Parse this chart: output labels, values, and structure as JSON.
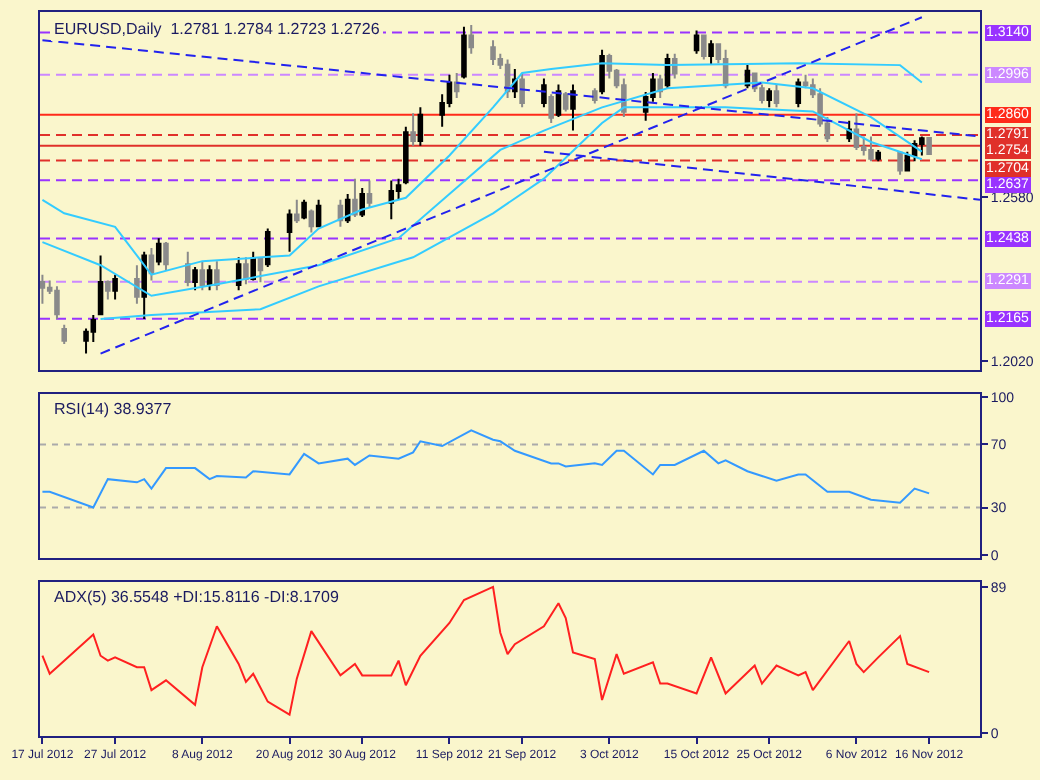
{
  "chart_data": [
    {
      "type": "candlestick",
      "title": "EURUSD,Daily  1.2781 1.2784 1.2723 1.2726",
      "x": [
        "2012-07-17",
        "2012-07-18",
        "2012-07-19",
        "2012-07-20",
        "2012-07-23",
        "2012-07-24",
        "2012-07-25",
        "2012-07-26",
        "2012-07-27",
        "2012-07-30",
        "2012-07-31",
        "2012-08-01",
        "2012-08-02",
        "2012-08-03",
        "2012-08-06",
        "2012-08-07",
        "2012-08-08",
        "2012-08-09",
        "2012-08-10",
        "2012-08-13",
        "2012-08-14",
        "2012-08-15",
        "2012-08-16",
        "2012-08-17",
        "2012-08-20",
        "2012-08-21",
        "2012-08-22",
        "2012-08-23",
        "2012-08-24",
        "2012-08-27",
        "2012-08-28",
        "2012-08-29",
        "2012-08-30",
        "2012-08-31",
        "2012-09-03",
        "2012-09-04",
        "2012-09-05",
        "2012-09-06",
        "2012-09-07",
        "2012-09-10",
        "2012-09-11",
        "2012-09-12",
        "2012-09-13",
        "2012-09-14",
        "2012-09-17",
        "2012-09-18",
        "2012-09-19",
        "2012-09-20",
        "2012-09-21",
        "2012-09-24",
        "2012-09-25",
        "2012-09-26",
        "2012-09-27",
        "2012-09-28",
        "2012-10-01",
        "2012-10-02",
        "2012-10-03",
        "2012-10-04",
        "2012-10-05",
        "2012-10-08",
        "2012-10-09",
        "2012-10-10",
        "2012-10-11",
        "2012-10-12",
        "2012-10-15",
        "2012-10-16",
        "2012-10-17",
        "2012-10-18",
        "2012-10-19",
        "2012-10-22",
        "2012-10-23",
        "2012-10-24",
        "2012-10-25",
        "2012-10-26",
        "2012-10-29",
        "2012-10-30",
        "2012-10-31",
        "2012-11-01",
        "2012-11-02",
        "2012-11-05",
        "2012-11-06",
        "2012-11-07",
        "2012-11-08",
        "2012-11-09",
        "2012-11-12",
        "2012-11-13",
        "2012-11-14",
        "2012-11-15",
        "2012-11-16"
      ],
      "ohlc": [
        [
          1.229,
          1.2315,
          1.2216,
          1.227
        ],
        [
          1.227,
          1.2295,
          1.2249,
          1.226
        ],
        [
          1.226,
          1.2275,
          1.2164,
          1.218
        ],
        [
          1.213,
          1.2144,
          1.2079,
          1.209
        ],
        [
          1.209,
          1.2131,
          1.2046,
          1.212
        ],
        [
          1.212,
          1.2177,
          1.2085,
          1.216
        ],
        [
          1.218,
          1.238,
          1.2177,
          1.229
        ],
        [
          1.229,
          1.2295,
          1.223,
          1.226
        ],
        [
          1.226,
          1.2315,
          1.223,
          1.23
        ],
        [
          1.23,
          1.2347,
          1.2216,
          1.224
        ],
        [
          1.224,
          1.2393,
          1.2164,
          1.238
        ],
        [
          1.238,
          1.2406,
          1.2295,
          1.232
        ],
        [
          1.236,
          1.2439,
          1.2347,
          1.242
        ],
        [
          1.242,
          1.2426,
          1.2328,
          1.235
        ],
        [
          1.235,
          1.2393,
          1.2275,
          1.229
        ],
        [
          1.229,
          1.2341,
          1.2262,
          1.233
        ],
        [
          1.233,
          1.2361,
          1.2262,
          1.228
        ],
        [
          1.228,
          1.2347,
          1.2262,
          1.233
        ],
        [
          1.233,
          1.2361,
          1.2262,
          1.228
        ],
        [
          1.228,
          1.2374,
          1.2262,
          1.235
        ],
        [
          1.235,
          1.2374,
          1.2282,
          1.23
        ],
        [
          1.23,
          1.2393,
          1.2295,
          1.237
        ],
        [
          1.237,
          1.2374,
          1.2289,
          1.233
        ],
        [
          1.235,
          1.2472,
          1.2341,
          1.246
        ],
        [
          1.246,
          1.2537,
          1.2393,
          1.252
        ],
        [
          1.252,
          1.257,
          1.2491,
          1.25
        ],
        [
          1.251,
          1.257,
          1.2504,
          1.256
        ],
        [
          1.253,
          1.2537,
          1.2459,
          1.248
        ],
        [
          1.248,
          1.257,
          1.2478,
          1.255
        ],
        [
          1.255,
          1.257,
          1.2478,
          1.25
        ],
        [
          1.25,
          1.259,
          1.2491,
          1.257
        ],
        [
          1.257,
          1.2642,
          1.2511,
          1.252
        ],
        [
          1.252,
          1.261,
          1.2511,
          1.259
        ],
        [
          1.259,
          1.2636,
          1.2544,
          1.256
        ],
        [
          1.256,
          1.2636,
          1.2504,
          1.26
        ],
        [
          1.26,
          1.2642,
          1.257,
          1.262
        ],
        [
          1.263,
          1.2819,
          1.2623,
          1.28
        ],
        [
          1.28,
          1.2865,
          1.2754,
          1.277
        ],
        [
          1.277,
          1.2885,
          1.2754,
          1.286
        ],
        [
          1.286,
          1.293,
          1.2819,
          1.29
        ],
        [
          1.29,
          1.2996,
          1.2885,
          1.297
        ],
        [
          1.297,
          1.3002,
          1.2917,
          1.294
        ],
        [
          1.299,
          1.316,
          1.2983,
          1.313
        ],
        [
          1.313,
          1.3166,
          1.3068,
          1.309
        ],
        [
          1.309,
          1.3114,
          1.3029,
          1.305
        ],
        [
          1.305,
          1.3068,
          1.3016,
          1.303
        ],
        [
          1.303,
          1.3048,
          1.2917,
          1.294
        ],
        [
          1.294,
          1.3016,
          1.2917,
          1.298
        ],
        [
          1.298,
          1.3002,
          1.2885,
          1.29
        ],
        [
          1.29,
          1.2983,
          1.2885,
          1.296
        ],
        [
          1.292,
          1.293,
          1.2832,
          1.285
        ],
        [
          1.286,
          1.2963,
          1.2852,
          1.294
        ],
        [
          1.293,
          1.2937,
          1.2871,
          1.288
        ],
        [
          1.288,
          1.2963,
          1.2806,
          1.294
        ],
        [
          1.294,
          1.295,
          1.2898,
          1.291
        ],
        [
          1.294,
          1.3081,
          1.293,
          1.306
        ],
        [
          1.306,
          1.3068,
          1.2983,
          1.301
        ],
        [
          1.301,
          1.3016,
          1.295,
          1.296
        ],
        [
          1.296,
          1.2983,
          1.2852,
          1.287
        ],
        [
          1.287,
          1.2937,
          1.2839,
          1.292
        ],
        [
          1.292,
          1.3002,
          1.2904,
          1.298
        ],
        [
          1.298,
          1.2996,
          1.2917,
          1.294
        ],
        [
          1.296,
          1.3068,
          1.295,
          1.305
        ],
        [
          1.305,
          1.3068,
          1.2983,
          1.3
        ],
        [
          1.308,
          1.3147,
          1.3068,
          1.313
        ],
        [
          1.313,
          1.3133,
          1.3048,
          1.306
        ],
        [
          1.306,
          1.3114,
          1.3029,
          1.31
        ],
        [
          1.31,
          1.3101,
          1.3035,
          1.305
        ],
        [
          1.305,
          1.3081,
          1.295,
          1.296
        ],
        [
          1.296,
          1.3029,
          1.295,
          1.301
        ],
        [
          1.3,
          1.3002,
          1.2937,
          1.295
        ],
        [
          1.295,
          1.2963,
          1.2898,
          1.291
        ],
        [
          1.291,
          1.295,
          1.2885,
          1.294
        ],
        [
          1.294,
          1.2963,
          1.2885,
          1.29
        ],
        [
          1.29,
          1.2983,
          1.2885,
          1.297
        ],
        [
          1.297,
          1.2996,
          1.295,
          1.296
        ],
        [
          1.296,
          1.2983,
          1.2917,
          1.293
        ],
        [
          1.293,
          1.295,
          1.2819,
          1.283
        ],
        [
          1.283,
          1.2852,
          1.2767,
          1.278
        ],
        [
          1.278,
          1.2839,
          1.2767,
          1.281
        ],
        [
          1.281,
          1.2865,
          1.274,
          1.275
        ],
        [
          1.275,
          1.2786,
          1.2721,
          1.274
        ],
        [
          1.274,
          1.2786,
          1.2701,
          1.271
        ],
        [
          1.271,
          1.274,
          1.2701,
          1.273
        ],
        [
          1.273,
          1.2734,
          1.2655,
          1.267
        ],
        [
          1.267,
          1.2734,
          1.2668,
          1.272
        ],
        [
          1.272,
          1.2773,
          1.2701,
          1.276
        ],
        [
          1.276,
          1.2786,
          1.2721,
          1.278
        ],
        [
          1.2781,
          1.2784,
          1.2723,
          1.2726
        ]
      ],
      "series": [
        {
          "type": "line",
          "color": "#33ccff",
          "x": [
            "2012-07-17",
            "2012-07-20",
            "2012-07-27",
            "2012-08-01",
            "2012-08-08",
            "2012-08-20",
            "2012-08-24",
            "2012-08-30",
            "2012-09-05",
            "2012-09-11",
            "2012-09-17",
            "2012-09-21",
            "2012-09-25",
            "2012-10-02",
            "2012-10-11",
            "2012-10-29",
            "2012-11-12",
            "2012-11-15"
          ],
          "values": [
            1.257,
            1.2524,
            1.2478,
            1.2315,
            1.2361,
            1.238,
            1.2472,
            1.2537,
            1.2577,
            1.2721,
            1.2885,
            1.3002,
            1.3016,
            1.3035,
            1.3029,
            1.3035,
            1.3029,
            1.297
          ]
        },
        {
          "type": "line",
          "color": "#33ccff",
          "x": [
            "2012-07-17",
            "2012-07-25",
            "2012-08-01",
            "2012-08-10",
            "2012-08-24",
            "2012-09-04",
            "2012-09-11",
            "2012-09-18",
            "2012-09-24",
            "2012-10-02",
            "2012-10-11",
            "2012-10-24",
            "2012-10-31",
            "2012-11-08",
            "2012-11-15"
          ],
          "values": [
            1.2426,
            1.2347,
            1.2243,
            1.2282,
            1.2347,
            1.2439,
            1.259,
            1.274,
            1.2806,
            1.2885,
            1.295,
            1.297,
            1.295,
            1.2852,
            1.2734
          ]
        },
        {
          "type": "line",
          "color": "#33ccff",
          "x": [
            "2012-07-25",
            "2012-08-01",
            "2012-08-16",
            "2012-08-24",
            "2012-09-06",
            "2012-09-17",
            "2012-09-24",
            "2012-10-02",
            "2012-10-05",
            "2012-10-19",
            "2012-10-31",
            "2012-11-08",
            "2012-11-15"
          ],
          "values": [
            1.2164,
            1.2177,
            1.2197,
            1.2275,
            1.2374,
            1.2524,
            1.2642,
            1.2832,
            1.2885,
            1.2885,
            1.2871,
            1.2767,
            1.2708
          ]
        },
        {
          "type": "line",
          "color": "#2222ee",
          "line_style": "dashed",
          "x": [
            "2012-07-17",
            "2012-11-23"
          ],
          "values": [
            1.3114,
            1.2786
          ]
        },
        {
          "type": "line",
          "color": "#2222ee",
          "line_style": "dashed",
          "x": [
            "2012-07-25",
            "2012-11-15"
          ],
          "values": [
            1.2046,
            1.3192
          ]
        },
        {
          "type": "line",
          "color": "#2222ee",
          "line_style": "dashed",
          "x": [
            "2012-09-24",
            "2012-11-23"
          ],
          "values": [
            1.2734,
            1.257
          ]
        }
      ],
      "ref_lines": [
        {
          "axis": "y",
          "value": 1.314,
          "label": "1.3140",
          "color": "#9933ff",
          "line_style": "dashed"
        },
        {
          "axis": "y",
          "value": 1.2996,
          "label": "1.2996",
          "color": "#cc88ff",
          "line_style": "dashed"
        },
        {
          "axis": "y",
          "value": 1.286,
          "label": "1.2860",
          "color": "#ff2a1a",
          "line_style": "solid"
        },
        {
          "axis": "y",
          "value": 1.2791,
          "label": "1.2791",
          "color": "#e0302a",
          "line_style": "dashed"
        },
        {
          "axis": "y",
          "value": 1.2754,
          "label": "1.2754",
          "color": "#e0302a",
          "line_style": "solid"
        },
        {
          "axis": "y",
          "value": 1.2704,
          "label": "1.2704",
          "color": "#e0302a",
          "line_style": "dashed"
        },
        {
          "axis": "y",
          "value": 1.2637,
          "label": "1.2637",
          "color": "#9933ff",
          "line_style": "dashed"
        },
        {
          "axis": "y",
          "value": 1.2438,
          "label": "1.2438",
          "color": "#9933ff",
          "line_style": "dashed"
        },
        {
          "axis": "y",
          "value": 1.2291,
          "label": "1.2291",
          "color": "#cc88ff",
          "line_style": "dashed"
        },
        {
          "axis": "y",
          "value": 1.2165,
          "label": "1.2165",
          "color": "#9933ff",
          "line_style": "dashed"
        }
      ],
      "xlim": [
        "2012-07-16T16:00",
        "2012-11-23"
      ],
      "ylim": [
        1.199,
        1.321
      ],
      "yticks": [
        {
          "value": 1.258,
          "label": "1.2580"
        },
        {
          "value": 1.202,
          "label": "1.2020"
        }
      ],
      "tick_labels": "y",
      "grid": false
    },
    {
      "type": "line",
      "title": "RSI(14) 38.9377",
      "color": "#3399ff",
      "x": [
        "2012-07-17",
        "2012-07-18",
        "2012-07-24",
        "2012-07-26",
        "2012-07-30",
        "2012-07-31",
        "2012-08-01",
        "2012-08-03",
        "2012-08-07",
        "2012-08-09",
        "2012-08-10",
        "2012-08-14",
        "2012-08-15",
        "2012-08-20",
        "2012-08-22",
        "2012-08-24",
        "2012-08-28",
        "2012-08-29",
        "2012-08-31",
        "2012-09-04",
        "2012-09-06",
        "2012-09-07",
        "2012-09-10",
        "2012-09-14",
        "2012-09-17",
        "2012-09-18",
        "2012-09-20",
        "2012-09-25",
        "2012-09-26",
        "2012-09-27",
        "2012-10-01",
        "2012-10-02",
        "2012-10-04",
        "2012-10-05",
        "2012-10-09",
        "2012-10-10",
        "2012-10-12",
        "2012-10-16",
        "2012-10-18",
        "2012-10-19",
        "2012-10-22",
        "2012-10-24",
        "2012-10-26",
        "2012-10-29",
        "2012-10-30",
        "2012-11-02",
        "2012-11-05",
        "2012-11-08",
        "2012-11-12",
        "2012-11-14",
        "2012-11-16"
      ],
      "values": [
        40,
        40,
        30,
        48,
        46,
        48,
        42,
        55,
        55,
        48,
        50,
        49,
        53,
        51,
        64,
        58,
        61,
        57,
        63,
        61,
        65,
        72,
        69,
        79,
        73,
        72,
        66,
        58,
        58,
        56,
        58,
        57,
        66,
        66,
        51,
        57,
        57,
        66,
        58,
        60,
        53,
        50,
        47,
        51,
        51,
        40,
        40,
        35,
        33,
        42,
        39
      ],
      "ref_lines": [
        {
          "axis": "y",
          "value": 70,
          "label": null,
          "color": "#aaaaaa",
          "line_style": "dotted"
        },
        {
          "axis": "y",
          "value": 30,
          "label": null,
          "color": "#aaaaaa",
          "line_style": "dotted"
        }
      ],
      "xlim": [
        "2012-07-16T16:00",
        "2012-11-23"
      ],
      "ylim": [
        -2,
        102
      ],
      "yticks": [
        0,
        30,
        70,
        100
      ],
      "tick_labels": "y",
      "grid": false
    },
    {
      "type": "line",
      "title": "ADX(5) 36.5548 +DI:15.8116 -DI:8.1709",
      "color": "#ff2020",
      "x": [
        "2012-07-17",
        "2012-07-18",
        "2012-07-20",
        "2012-07-24",
        "2012-07-25",
        "2012-07-26",
        "2012-07-27",
        "2012-07-30",
        "2012-07-31",
        "2012-08-01",
        "2012-08-03",
        "2012-08-07",
        "2012-08-08",
        "2012-08-10",
        "2012-08-13",
        "2012-08-14",
        "2012-08-15",
        "2012-08-17",
        "2012-08-20",
        "2012-08-21",
        "2012-08-23",
        "2012-08-27",
        "2012-08-29",
        "2012-08-30",
        "2012-09-03",
        "2012-09-04",
        "2012-09-05",
        "2012-09-07",
        "2012-09-11",
        "2012-09-13",
        "2012-09-17",
        "2012-09-18",
        "2012-09-19",
        "2012-09-20",
        "2012-09-24",
        "2012-09-26",
        "2012-09-27",
        "2012-09-28",
        "2012-10-01",
        "2012-10-02",
        "2012-10-04",
        "2012-10-05",
        "2012-10-09",
        "2012-10-10",
        "2012-10-11",
        "2012-10-15",
        "2012-10-17",
        "2012-10-19",
        "2012-10-23",
        "2012-10-24",
        "2012-10-26",
        "2012-10-29",
        "2012-10-30",
        "2012-10-31",
        "2012-11-05",
        "2012-11-06",
        "2012-11-07",
        "2012-11-09",
        "2012-11-12",
        "2012-11-13",
        "2012-11-16"
      ],
      "values": [
        47,
        36,
        44,
        60,
        47,
        44,
        46,
        40,
        40,
        26,
        32,
        17,
        40,
        65,
        42,
        31,
        36,
        19,
        11,
        33,
        62,
        35,
        42,
        35,
        35,
        44,
        29,
        47,
        67,
        81,
        89,
        61,
        48,
        54,
        65,
        79,
        70,
        49,
        45,
        20,
        48,
        36,
        43,
        30,
        30,
        24,
        46,
        24,
        41,
        30,
        41,
        35,
        37,
        26,
        56,
        42,
        37,
        46,
        59,
        42,
        37
      ],
      "xlim": [
        "2012-07-16T16:00",
        "2012-11-23"
      ],
      "xticks": [
        {
          "value": "2012-07-17",
          "label": "17 Jul 2012"
        },
        {
          "value": "2012-07-27",
          "label": "27 Jul 2012"
        },
        {
          "value": "2012-08-08",
          "label": "8 Aug 2012"
        },
        {
          "value": "2012-08-20",
          "label": "20 Aug 2012"
        },
        {
          "value": "2012-08-30",
          "label": "30 Aug 2012"
        },
        {
          "value": "2012-09-11",
          "label": "11 Sep 2012"
        },
        {
          "value": "2012-09-21",
          "label": "21 Sep 2012"
        },
        {
          "value": "2012-10-03",
          "label": "3 Oct 2012"
        },
        {
          "value": "2012-10-15",
          "label": "15 Oct 2012"
        },
        {
          "value": "2012-10-25",
          "label": "25 Oct 2012"
        },
        {
          "value": "2012-11-06",
          "label": "6 Nov 2012"
        },
        {
          "value": "2012-11-16",
          "label": "16 Nov 2012"
        }
      ],
      "ylim": [
        -2,
        92
      ],
      "yticks": [
        0,
        89
      ],
      "grid": false
    }
  ]
}
